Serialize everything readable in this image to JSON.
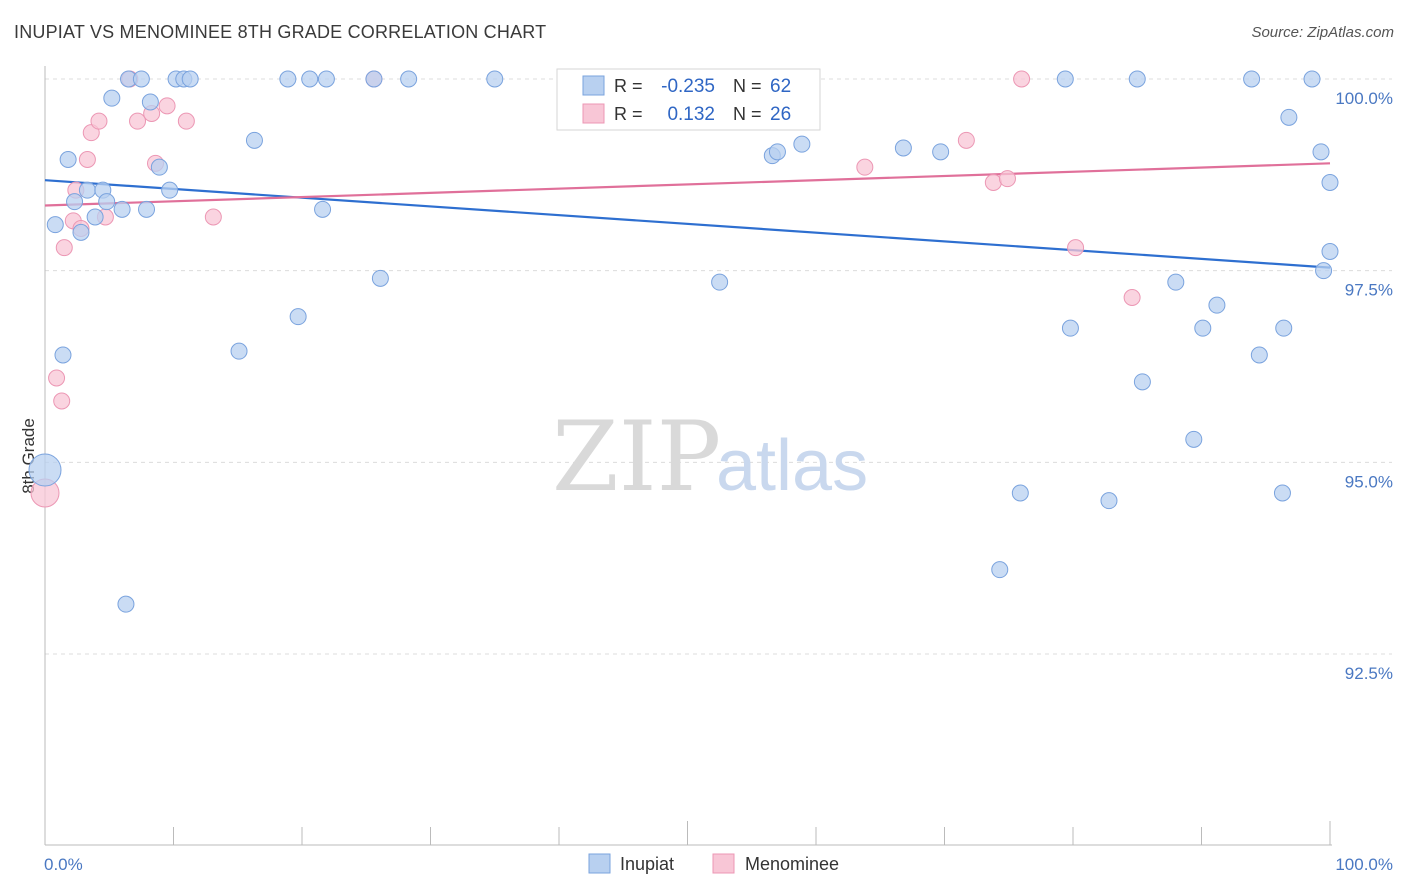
{
  "title": "INUPIAT VS MENOMINEE 8TH GRADE CORRELATION CHART",
  "source": "Source: ZipAtlas.com",
  "watermark": {
    "zip": "ZIP",
    "atlas": "atlas"
  },
  "colors": {
    "inupiat_fill": "#b8d0f0",
    "inupiat_stroke": "#7aa3de",
    "inupiat_line": "#2e6fd0",
    "menominee_fill": "#f8c6d6",
    "menominee_stroke": "#ec97b4",
    "menominee_line": "#e0709a",
    "tick_label": "#4a78c2",
    "grid": "#dcdcdc"
  },
  "legend": {
    "inupiat": {
      "r_label": "R =",
      "r_value": "-0.235",
      "n_label": "N =",
      "n_value": "62"
    },
    "menominee": {
      "r_label": "R =",
      "r_value": "0.132",
      "n_label": "N =",
      "n_value": "26"
    }
  },
  "chart_data": {
    "type": "scatter",
    "title": "INUPIAT VS MENOMINEE 8TH GRADE CORRELATION CHART",
    "xlabel": "",
    "ylabel": "8th Grade",
    "xlim": [
      0,
      100
    ],
    "ylim": [
      90.2,
      100.35
    ],
    "x_tick_labels": [
      "0.0%",
      "100.0%"
    ],
    "y_ticks": [
      {
        "value": 100.0,
        "label": "100.0%"
      },
      {
        "value": 97.5,
        "label": "97.5%"
      },
      {
        "value": 95.0,
        "label": "95.0%"
      },
      {
        "value": 92.5,
        "label": "92.5%"
      }
    ],
    "grid": true,
    "legend_position": "top-center",
    "series": [
      {
        "name": "Inupiat",
        "trend": {
          "x": [
            0,
            100
          ],
          "y": [
            98.68,
            97.54
          ]
        },
        "points": [
          {
            "x": 0,
            "y": 94.9,
            "s": 16
          },
          {
            "x": 0.8,
            "y": 98.1
          },
          {
            "x": 1.4,
            "y": 96.4
          },
          {
            "x": 1.8,
            "y": 98.95
          },
          {
            "x": 2.3,
            "y": 98.4
          },
          {
            "x": 2.8,
            "y": 98.0
          },
          {
            "x": 3.3,
            "y": 98.55
          },
          {
            "x": 3.9,
            "y": 98.2
          },
          {
            "x": 4.5,
            "y": 98.55
          },
          {
            "x": 4.8,
            "y": 98.4
          },
          {
            "x": 5.2,
            "y": 99.75
          },
          {
            "x": 6.0,
            "y": 98.3
          },
          {
            "x": 6.3,
            "y": 93.15
          },
          {
            "x": 6.5,
            "y": 100.0
          },
          {
            "x": 7.5,
            "y": 100.0
          },
          {
            "x": 7.9,
            "y": 98.3
          },
          {
            "x": 8.2,
            "y": 99.7
          },
          {
            "x": 8.9,
            "y": 98.85
          },
          {
            "x": 9.7,
            "y": 98.55
          },
          {
            "x": 10.2,
            "y": 100.0
          },
          {
            "x": 10.8,
            "y": 100.0
          },
          {
            "x": 11.3,
            "y": 100.0
          },
          {
            "x": 15.1,
            "y": 96.45
          },
          {
            "x": 16.3,
            "y": 99.2
          },
          {
            "x": 18.9,
            "y": 100.0
          },
          {
            "x": 19.7,
            "y": 96.9
          },
          {
            "x": 20.6,
            "y": 100.0
          },
          {
            "x": 21.6,
            "y": 98.3
          },
          {
            "x": 21.9,
            "y": 100.0
          },
          {
            "x": 25.6,
            "y": 100.0
          },
          {
            "x": 26.1,
            "y": 97.4
          },
          {
            "x": 28.3,
            "y": 100.0
          },
          {
            "x": 35.0,
            "y": 100.0
          },
          {
            "x": 47.0,
            "y": 100.0
          },
          {
            "x": 49.3,
            "y": 100.0
          },
          {
            "x": 52.5,
            "y": 97.35
          },
          {
            "x": 56.6,
            "y": 99.0
          },
          {
            "x": 57.0,
            "y": 99.05
          },
          {
            "x": 58.9,
            "y": 99.15
          },
          {
            "x": 66.8,
            "y": 99.1
          },
          {
            "x": 69.7,
            "y": 99.05
          },
          {
            "x": 74.3,
            "y": 93.6
          },
          {
            "x": 75.9,
            "y": 94.6
          },
          {
            "x": 79.4,
            "y": 100.0
          },
          {
            "x": 79.8,
            "y": 96.75
          },
          {
            "x": 82.8,
            "y": 94.5
          },
          {
            "x": 85.0,
            "y": 100.0
          },
          {
            "x": 85.4,
            "y": 96.05
          },
          {
            "x": 88.0,
            "y": 97.35
          },
          {
            "x": 89.4,
            "y": 95.3
          },
          {
            "x": 90.1,
            "y": 96.75
          },
          {
            "x": 91.2,
            "y": 97.05
          },
          {
            "x": 93.9,
            "y": 100.0
          },
          {
            "x": 94.5,
            "y": 96.4
          },
          {
            "x": 96.3,
            "y": 94.6
          },
          {
            "x": 96.4,
            "y": 96.75
          },
          {
            "x": 96.8,
            "y": 99.5
          },
          {
            "x": 98.6,
            "y": 100.0
          },
          {
            "x": 99.3,
            "y": 99.05
          },
          {
            "x": 99.5,
            "y": 97.5
          },
          {
            "x": 100.0,
            "y": 97.75
          },
          {
            "x": 100.0,
            "y": 98.65
          }
        ]
      },
      {
        "name": "Menominee",
        "trend": {
          "x": [
            0,
            100
          ],
          "y": [
            98.35,
            98.9
          ]
        },
        "points": [
          {
            "x": 0,
            "y": 94.6,
            "s": 14
          },
          {
            "x": 0.9,
            "y": 96.1
          },
          {
            "x": 1.3,
            "y": 95.8
          },
          {
            "x": 1.5,
            "y": 97.8
          },
          {
            "x": 2.2,
            "y": 98.15
          },
          {
            "x": 2.4,
            "y": 98.55
          },
          {
            "x": 2.8,
            "y": 98.05
          },
          {
            "x": 3.3,
            "y": 98.95
          },
          {
            "x": 3.6,
            "y": 99.3
          },
          {
            "x": 4.2,
            "y": 99.45
          },
          {
            "x": 4.7,
            "y": 98.2
          },
          {
            "x": 6.6,
            "y": 100.0
          },
          {
            "x": 7.2,
            "y": 99.45
          },
          {
            "x": 8.3,
            "y": 99.55
          },
          {
            "x": 8.6,
            "y": 98.9
          },
          {
            "x": 9.5,
            "y": 99.65
          },
          {
            "x": 11.0,
            "y": 99.45
          },
          {
            "x": 13.1,
            "y": 98.2
          },
          {
            "x": 25.6,
            "y": 100.0
          },
          {
            "x": 63.8,
            "y": 98.85
          },
          {
            "x": 71.7,
            "y": 99.2
          },
          {
            "x": 73.8,
            "y": 98.65
          },
          {
            "x": 74.9,
            "y": 98.7
          },
          {
            "x": 76.0,
            "y": 100.0
          },
          {
            "x": 80.2,
            "y": 97.8
          },
          {
            "x": 84.6,
            "y": 97.15
          }
        ]
      }
    ]
  },
  "bottom_legend": [
    "Inupiat",
    "Menominee"
  ]
}
